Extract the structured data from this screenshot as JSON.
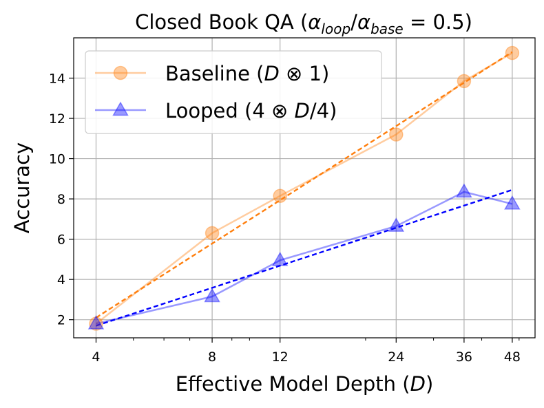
{
  "chart_data": {
    "type": "line",
    "title": "Closed Book QA (αloop/αbase = 0.5)",
    "title_parts": {
      "prefix": "Closed Book QA (",
      "alpha": "α",
      "sub1": "loop",
      "slash": "/",
      "sub2": "base",
      "suffix": " = 0.5)"
    },
    "xlabel": "Effective Model Depth (D)",
    "xlabel_parts": {
      "prefix": "Effective Model Depth (",
      "var": "D",
      "suffix": ")"
    },
    "ylabel": "Accuracy",
    "x_scale": "log",
    "x": [
      4,
      8,
      12,
      24,
      36,
      48
    ],
    "x_tick_labels": [
      "4",
      "8",
      "12",
      "24",
      "36",
      "48"
    ],
    "xlim": [
      3.5,
      55
    ],
    "ylim": [
      1.1,
      16.0
    ],
    "y_ticks": [
      2,
      4,
      6,
      8,
      10,
      12,
      14
    ],
    "grid": true,
    "legend_position": "top-left",
    "series": [
      {
        "name": "Baseline (D ⊗ 1)",
        "legend_parts": {
          "prefix": "Baseline (",
          "var": "D",
          "op": " ⊗ 1)"
        },
        "values": [
          1.8,
          6.3,
          8.15,
          11.2,
          13.85,
          15.25
        ],
        "marker": "circle",
        "color": "#ff7f0e",
        "trend": {
          "from": [
            4,
            2.1
          ],
          "to": [
            48,
            15.3
          ],
          "color": "#ff7f0e"
        }
      },
      {
        "name": "Looped (4 ⊗ D/4)",
        "legend_parts": {
          "prefix": "Looped (4 ⊗ ",
          "var": "D",
          "suffix": "/4)"
        },
        "values": [
          1.8,
          3.15,
          4.95,
          6.65,
          8.35,
          7.75
        ],
        "marker": "triangle",
        "color": "#0000ff",
        "trend": {
          "from": [
            4,
            1.7
          ],
          "to": [
            48,
            8.45
          ],
          "color": "#0000ff"
        }
      }
    ]
  }
}
